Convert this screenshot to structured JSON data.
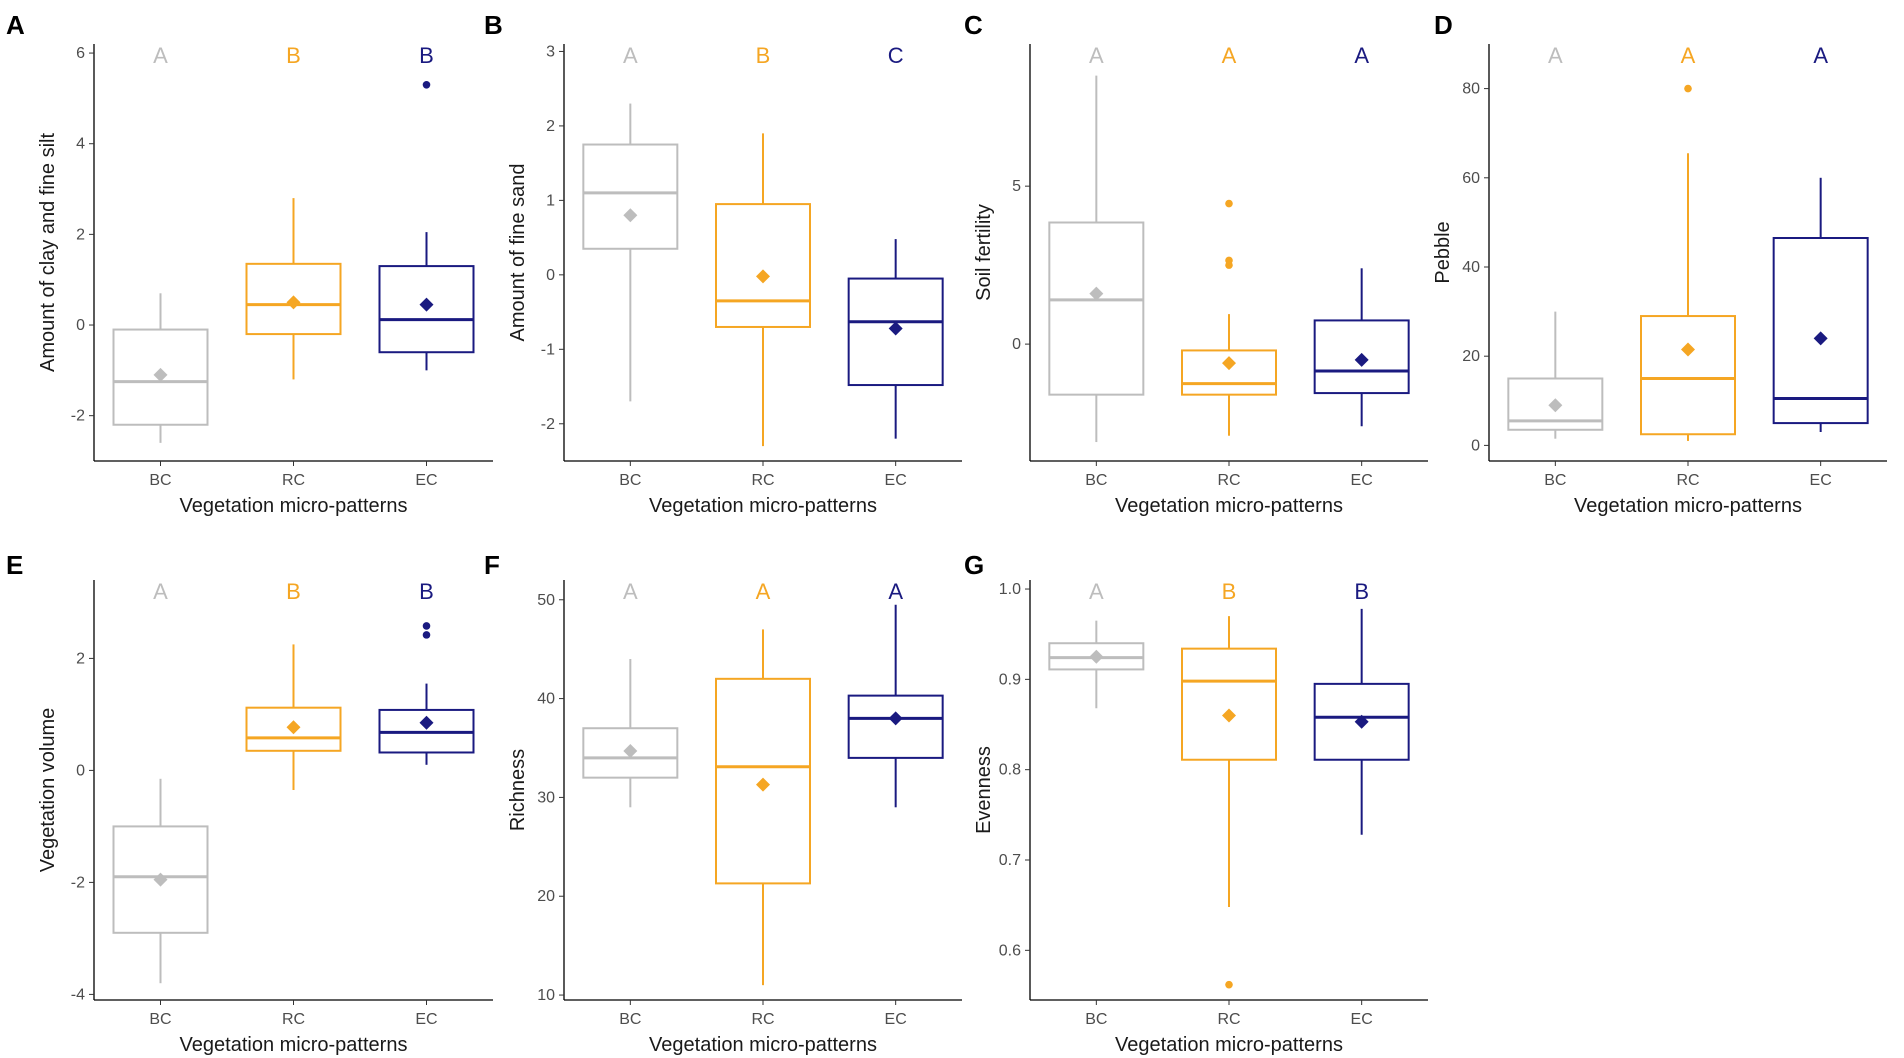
{
  "figure": {
    "xlabel": "Vegetation micro-patterns",
    "categories": [
      "BC",
      "RC",
      "EC"
    ]
  },
  "colors": {
    "BC": "#bdbdbd",
    "RC": "#f5a623",
    "EC": "#1a1a80"
  },
  "chart_data": [
    {
      "panel": "A",
      "type": "box",
      "ylabel": "Amount of clay and fine silt",
      "ylim": [
        -3,
        6.2
      ],
      "yticks": [
        -2,
        0,
        2,
        4,
        6
      ],
      "categories": [
        "BC",
        "RC",
        "EC"
      ],
      "boxes": [
        {
          "category": "BC",
          "min": -2.6,
          "q1": -2.2,
          "median": -1.25,
          "q3": -0.1,
          "max": 0.7,
          "mean": -1.1,
          "outliers": []
        },
        {
          "category": "RC",
          "min": -1.2,
          "q1": -0.2,
          "median": 0.45,
          "q3": 1.35,
          "max": 2.8,
          "mean": 0.5,
          "outliers": []
        },
        {
          "category": "EC",
          "min": -1.0,
          "q1": -0.6,
          "median": 0.12,
          "q3": 1.3,
          "max": 2.05,
          "mean": 0.45,
          "outliers": [
            5.3
          ]
        }
      ],
      "letters": [
        "A",
        "B",
        "B"
      ]
    },
    {
      "panel": "B",
      "type": "box",
      "ylabel": "Amount of fine sand",
      "ylim": [
        -2.5,
        3.1
      ],
      "yticks": [
        -2,
        -1,
        0,
        1,
        2,
        3
      ],
      "categories": [
        "BC",
        "RC",
        "EC"
      ],
      "boxes": [
        {
          "category": "BC",
          "min": -1.7,
          "q1": 0.35,
          "median": 1.1,
          "q3": 1.75,
          "max": 2.3,
          "mean": 0.8,
          "outliers": []
        },
        {
          "category": "RC",
          "min": -2.3,
          "q1": -0.7,
          "median": -0.35,
          "q3": 0.95,
          "max": 1.9,
          "mean": -0.02,
          "outliers": []
        },
        {
          "category": "EC",
          "min": -2.2,
          "q1": -1.48,
          "median": -0.63,
          "q3": -0.05,
          "max": 0.48,
          "mean": -0.72,
          "outliers": []
        }
      ],
      "letters": [
        "A",
        "B",
        "C"
      ]
    },
    {
      "panel": "C",
      "type": "box",
      "ylabel": "Soil fertility",
      "ylim": [
        -3.7,
        9.5
      ],
      "yticks": [
        0,
        5
      ],
      "categories": [
        "BC",
        "RC",
        "EC"
      ],
      "boxes": [
        {
          "category": "BC",
          "min": -3.1,
          "q1": -1.6,
          "median": 1.4,
          "q3": 3.85,
          "max": 8.5,
          "mean": 1.6,
          "outliers": []
        },
        {
          "category": "RC",
          "min": -2.9,
          "q1": -1.6,
          "median": -1.25,
          "q3": -0.2,
          "max": 0.95,
          "mean": -0.6,
          "outliers": [
            2.5,
            2.65,
            4.45
          ]
        },
        {
          "category": "EC",
          "min": -2.6,
          "q1": -1.55,
          "median": -0.85,
          "q3": 0.75,
          "max": 2.4,
          "mean": -0.5,
          "outliers": []
        }
      ],
      "letters": [
        "A",
        "A",
        "A"
      ]
    },
    {
      "panel": "D",
      "type": "box",
      "ylabel": "Pebble",
      "ylim": [
        -3.5,
        90
      ],
      "yticks": [
        0,
        20,
        40,
        60,
        80
      ],
      "categories": [
        "BC",
        "RC",
        "EC"
      ],
      "boxes": [
        {
          "category": "BC",
          "min": 1.5,
          "q1": 3.5,
          "median": 5.5,
          "q3": 15,
          "max": 30,
          "mean": 9,
          "outliers": []
        },
        {
          "category": "RC",
          "min": 1,
          "q1": 2.5,
          "median": 15,
          "q3": 29,
          "max": 65.5,
          "mean": 21.5,
          "outliers": [
            80
          ]
        },
        {
          "category": "EC",
          "min": 3,
          "q1": 5,
          "median": 10.5,
          "q3": 46.5,
          "max": 60,
          "mean": 24,
          "outliers": []
        }
      ],
      "letters": [
        "A",
        "A",
        "A"
      ]
    },
    {
      "panel": "E",
      "type": "box",
      "ylabel": "Vegetation volume",
      "ylim": [
        -4.1,
        3.4
      ],
      "yticks": [
        -4,
        -2,
        0,
        2
      ],
      "categories": [
        "BC",
        "RC",
        "EC"
      ],
      "boxes": [
        {
          "category": "BC",
          "min": -3.8,
          "q1": -2.9,
          "median": -1.9,
          "q3": -1.0,
          "max": -0.15,
          "mean": -1.95,
          "outliers": []
        },
        {
          "category": "RC",
          "min": -0.35,
          "q1": 0.35,
          "median": 0.58,
          "q3": 1.12,
          "max": 2.25,
          "mean": 0.77,
          "outliers": []
        },
        {
          "category": "EC",
          "min": 0.1,
          "q1": 0.32,
          "median": 0.68,
          "q3": 1.08,
          "max": 1.55,
          "mean": 0.85,
          "outliers": [
            2.42,
            2.58
          ]
        }
      ],
      "letters": [
        "A",
        "B",
        "B"
      ]
    },
    {
      "panel": "F",
      "type": "box",
      "ylabel": "Richness",
      "ylim": [
        9.5,
        52
      ],
      "yticks": [
        10,
        20,
        30,
        40,
        50
      ],
      "categories": [
        "BC",
        "RC",
        "EC"
      ],
      "boxes": [
        {
          "category": "BC",
          "min": 29,
          "q1": 32,
          "median": 34,
          "q3": 37,
          "max": 44,
          "mean": 34.7,
          "outliers": []
        },
        {
          "category": "RC",
          "min": 11,
          "q1": 21.3,
          "median": 33.1,
          "q3": 42,
          "max": 47,
          "mean": 31.3,
          "outliers": []
        },
        {
          "category": "EC",
          "min": 29,
          "q1": 34,
          "median": 38,
          "q3": 40.3,
          "max": 49.5,
          "mean": 38,
          "outliers": []
        }
      ],
      "letters": [
        "A",
        "A",
        "A"
      ]
    },
    {
      "panel": "G",
      "type": "box",
      "ylabel": "Evenness",
      "ylim": [
        0.545,
        1.01
      ],
      "yticks": [
        0.6,
        0.7,
        0.8,
        0.9,
        1.0
      ],
      "categories": [
        "BC",
        "RC",
        "EC"
      ],
      "boxes": [
        {
          "category": "BC",
          "min": 0.868,
          "q1": 0.911,
          "median": 0.924,
          "q3": 0.94,
          "max": 0.965,
          "mean": 0.925,
          "outliers": []
        },
        {
          "category": "RC",
          "min": 0.648,
          "q1": 0.811,
          "median": 0.898,
          "q3": 0.934,
          "max": 0.97,
          "mean": 0.86,
          "outliers": [
            0.562
          ]
        },
        {
          "category": "EC",
          "min": 0.728,
          "q1": 0.811,
          "median": 0.858,
          "q3": 0.895,
          "max": 0.978,
          "mean": 0.853,
          "outliers": []
        }
      ],
      "letters": [
        "A",
        "B",
        "B"
      ]
    }
  ]
}
